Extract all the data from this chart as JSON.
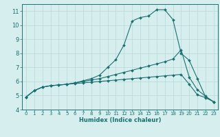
{
  "title": "",
  "xlabel": "Humidex (Indice chaleur)",
  "ylabel": "",
  "bg_color": "#d6eeee",
  "line_color": "#1a7070",
  "grid_color": "#b8d8d8",
  "xlim": [
    -0.5,
    23.5
  ],
  "ylim": [
    4,
    11.5
  ],
  "xticks": [
    0,
    1,
    2,
    3,
    4,
    5,
    6,
    7,
    8,
    9,
    10,
    11,
    12,
    13,
    14,
    15,
    16,
    17,
    18,
    19,
    20,
    21,
    22,
    23
  ],
  "yticks": [
    4,
    5,
    6,
    7,
    8,
    9,
    10,
    11
  ],
  "line1_x": [
    0,
    1,
    2,
    3,
    4,
    5,
    6,
    7,
    8,
    9,
    10,
    11,
    12,
    13,
    14,
    15,
    16,
    17,
    18,
    19,
    20,
    21,
    22,
    23
  ],
  "line1_y": [
    4.9,
    5.35,
    5.6,
    5.7,
    5.75,
    5.8,
    5.9,
    6.05,
    6.2,
    6.45,
    7.0,
    7.55,
    8.6,
    10.3,
    10.55,
    10.65,
    11.1,
    11.1,
    10.4,
    8.0,
    7.5,
    6.2,
    4.9,
    4.55
  ],
  "line2_x": [
    0,
    1,
    2,
    3,
    4,
    5,
    6,
    7,
    8,
    9,
    10,
    11,
    12,
    13,
    14,
    15,
    16,
    17,
    18,
    19,
    20,
    21,
    22,
    23
  ],
  "line2_y": [
    4.9,
    5.35,
    5.6,
    5.7,
    5.75,
    5.8,
    5.9,
    6.0,
    6.1,
    6.2,
    6.35,
    6.5,
    6.65,
    6.8,
    6.95,
    7.1,
    7.25,
    7.4,
    7.6,
    8.25,
    6.3,
    5.4,
    4.95,
    4.55
  ],
  "line3_x": [
    0,
    1,
    2,
    3,
    4,
    5,
    6,
    7,
    8,
    9,
    10,
    11,
    12,
    13,
    14,
    15,
    16,
    17,
    18,
    19,
    20,
    21,
    22,
    23
  ],
  "line3_y": [
    4.9,
    5.35,
    5.6,
    5.7,
    5.75,
    5.8,
    5.85,
    5.9,
    5.95,
    6.0,
    6.05,
    6.1,
    6.15,
    6.2,
    6.25,
    6.3,
    6.35,
    6.4,
    6.45,
    6.5,
    5.8,
    5.05,
    4.85,
    4.55
  ],
  "marker_size": 2.0,
  "linewidth": 0.8,
  "xlabel_fontsize": 6.0,
  "tick_fontsize_x": 5.0,
  "tick_fontsize_y": 6.0
}
